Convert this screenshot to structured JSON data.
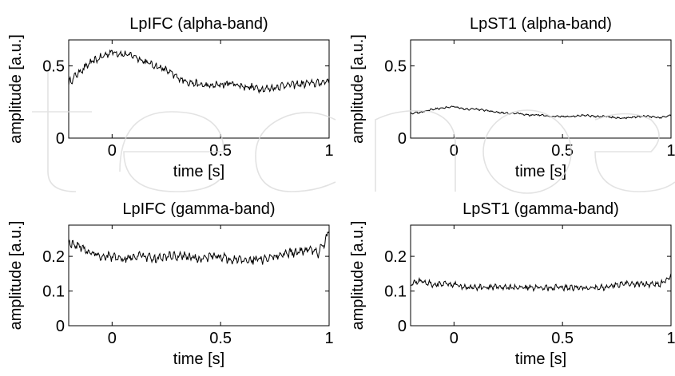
{
  "chart_data": [
    {
      "type": "line",
      "title": "LpIFC (alpha-band)",
      "xlabel": "time [s]",
      "ylabel": "amplitude [a.u.]",
      "xlim": [
        -0.2,
        1.0
      ],
      "ylim": [
        0,
        0.68
      ],
      "xticks": [
        {
          "v": 0,
          "label": "0"
        },
        {
          "v": 0.5,
          "label": "0.5"
        },
        {
          "v": 1,
          "label": "1"
        }
      ],
      "yticks": [
        {
          "v": 0,
          "label": "0"
        },
        {
          "v": 0.5,
          "label": "0.5"
        }
      ],
      "grid": false,
      "series": [
        {
          "x": [
            -0.2,
            -0.15,
            -0.1,
            -0.05,
            0.0,
            0.05,
            0.1,
            0.15,
            0.2,
            0.25,
            0.3,
            0.35,
            0.4,
            0.45,
            0.5,
            0.55,
            0.6,
            0.65,
            0.7,
            0.75,
            0.8,
            0.85,
            0.9,
            0.95,
            1.0
          ],
          "values": [
            0.38,
            0.46,
            0.52,
            0.56,
            0.6,
            0.58,
            0.57,
            0.53,
            0.5,
            0.47,
            0.42,
            0.39,
            0.37,
            0.36,
            0.37,
            0.38,
            0.36,
            0.35,
            0.34,
            0.35,
            0.37,
            0.37,
            0.38,
            0.38,
            0.4
          ],
          "ripple": 0.025
        }
      ]
    },
    {
      "type": "line",
      "title": "LpST1 (alpha-band)",
      "xlabel": "time [s]",
      "ylabel": "amplitude [a.u.]",
      "xlim": [
        -0.2,
        1.0
      ],
      "ylim": [
        0,
        0.68
      ],
      "xticks": [
        {
          "v": 0,
          "label": "0"
        },
        {
          "v": 0.5,
          "label": "0.5"
        },
        {
          "v": 1,
          "label": "1"
        }
      ],
      "yticks": [
        {
          "v": 0,
          "label": "0"
        },
        {
          "v": 0.5,
          "label": "0.5"
        }
      ],
      "grid": false,
      "series": [
        {
          "x": [
            -0.2,
            -0.15,
            -0.1,
            -0.05,
            0.0,
            0.05,
            0.1,
            0.15,
            0.2,
            0.25,
            0.3,
            0.35,
            0.4,
            0.45,
            0.5,
            0.55,
            0.6,
            0.65,
            0.7,
            0.75,
            0.8,
            0.85,
            0.9,
            0.95,
            1.0
          ],
          "values": [
            0.17,
            0.18,
            0.2,
            0.21,
            0.22,
            0.2,
            0.2,
            0.19,
            0.18,
            0.17,
            0.17,
            0.16,
            0.16,
            0.15,
            0.15,
            0.15,
            0.16,
            0.15,
            0.15,
            0.14,
            0.14,
            0.15,
            0.15,
            0.14,
            0.16
          ],
          "ripple": 0.006
        }
      ]
    },
    {
      "type": "line",
      "title": "LpIFC (gamma-band)",
      "xlabel": "time [s]",
      "ylabel": "amplitude [a.u.]",
      "xlim": [
        -0.2,
        1.0
      ],
      "ylim": [
        0,
        0.29
      ],
      "xticks": [
        {
          "v": 0,
          "label": "0"
        },
        {
          "v": 0.5,
          "label": "0.5"
        },
        {
          "v": 1,
          "label": "1"
        }
      ],
      "yticks": [
        {
          "v": 0,
          "label": "0"
        },
        {
          "v": 0.1,
          "label": "0.1"
        },
        {
          "v": 0.2,
          "label": "0.2"
        }
      ],
      "grid": false,
      "series": [
        {
          "x": [
            -0.2,
            -0.15,
            -0.1,
            -0.05,
            0.0,
            0.05,
            0.1,
            0.15,
            0.2,
            0.25,
            0.3,
            0.35,
            0.4,
            0.45,
            0.5,
            0.55,
            0.6,
            0.65,
            0.7,
            0.75,
            0.8,
            0.85,
            0.9,
            0.95,
            0.98,
            1.0
          ],
          "values": [
            0.24,
            0.23,
            0.21,
            0.2,
            0.2,
            0.19,
            0.2,
            0.2,
            0.19,
            0.2,
            0.2,
            0.2,
            0.19,
            0.2,
            0.2,
            0.19,
            0.19,
            0.19,
            0.19,
            0.2,
            0.21,
            0.21,
            0.22,
            0.21,
            0.24,
            0.28
          ],
          "ripple": 0.012
        }
      ]
    },
    {
      "type": "line",
      "title": "LpST1 (gamma-band)",
      "xlabel": "time [s]",
      "ylabel": "amplitude [a.u.]",
      "xlim": [
        -0.2,
        1.0
      ],
      "ylim": [
        0,
        0.29
      ],
      "xticks": [
        {
          "v": 0,
          "label": "0"
        },
        {
          "v": 0.5,
          "label": "0.5"
        },
        {
          "v": 1,
          "label": "1"
        }
      ],
      "yticks": [
        {
          "v": 0,
          "label": "0"
        },
        {
          "v": 0.1,
          "label": "0.1"
        },
        {
          "v": 0.2,
          "label": "0.2"
        }
      ],
      "grid": false,
      "series": [
        {
          "x": [
            -0.2,
            -0.15,
            -0.1,
            -0.05,
            0.0,
            0.05,
            0.1,
            0.15,
            0.2,
            0.25,
            0.3,
            0.35,
            0.4,
            0.45,
            0.5,
            0.55,
            0.6,
            0.65,
            0.7,
            0.75,
            0.8,
            0.85,
            0.9,
            0.95,
            0.98,
            1.0
          ],
          "values": [
            0.12,
            0.13,
            0.12,
            0.12,
            0.12,
            0.11,
            0.11,
            0.11,
            0.11,
            0.11,
            0.11,
            0.11,
            0.11,
            0.11,
            0.11,
            0.11,
            0.11,
            0.11,
            0.11,
            0.12,
            0.12,
            0.12,
            0.12,
            0.12,
            0.13,
            0.15
          ],
          "ripple": 0.008
        }
      ]
    }
  ]
}
